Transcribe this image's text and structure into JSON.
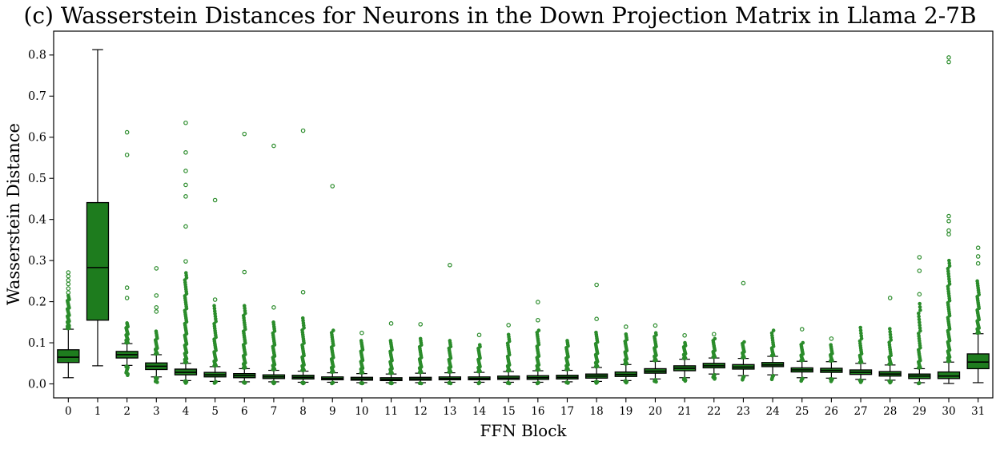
{
  "chart_data": {
    "type": "boxplot",
    "title": "(c) Wasserstein Distances for Neurons in the Down Projection Matrix in Llama 2-7B",
    "xlabel": "FFN Block",
    "ylabel": "Wasserstein Distance",
    "categories": [
      "0",
      "1",
      "2",
      "3",
      "4",
      "5",
      "6",
      "7",
      "8",
      "9",
      "10",
      "11",
      "12",
      "13",
      "14",
      "15",
      "16",
      "17",
      "18",
      "19",
      "20",
      "21",
      "22",
      "23",
      "24",
      "25",
      "26",
      "27",
      "28",
      "29",
      "30",
      "31"
    ],
    "yticks": [
      0.0,
      0.1,
      0.2,
      0.3,
      0.4,
      0.5,
      0.6,
      0.7,
      0.8
    ],
    "ylim": [
      -0.034,
      0.858
    ],
    "grid": false,
    "legend": null,
    "colors": {
      "box_fill": "#1e7c1e",
      "box_edge": "#000000",
      "median": "#000000",
      "whisker": "#000000",
      "outlier": "#2b8c2b",
      "background": "#ffffff"
    },
    "boxes": [
      {
        "label": "0",
        "whislo": 0.015,
        "q1": 0.052,
        "med": 0.065,
        "q3": 0.083,
        "whishi": 0.133,
        "outliers_dense_high": [
          0.135,
          0.215,
          40
        ],
        "outliers_isolated": [
          0.222,
          0.232,
          0.243,
          0.252,
          0.262,
          0.271
        ],
        "outliers_dense_low": []
      },
      {
        "label": "1",
        "whislo": 0.044,
        "q1": 0.155,
        "med": 0.283,
        "q3": 0.441,
        "whishi": 0.813,
        "outliers_dense_high": [],
        "outliers_isolated": [],
        "outliers_dense_low": []
      },
      {
        "label": "2",
        "whislo": 0.045,
        "q1": 0.063,
        "med": 0.071,
        "q3": 0.079,
        "whishi": 0.098,
        "outliers_dense_high": [
          0.1,
          0.148,
          26
        ],
        "outliers_isolated": [
          0.209,
          0.234,
          0.557,
          0.612
        ],
        "outliers_dense_low": [
          0.021,
          0.043,
          12
        ]
      },
      {
        "label": "3",
        "whislo": 0.017,
        "q1": 0.035,
        "med": 0.043,
        "q3": 0.051,
        "whishi": 0.071,
        "outliers_dense_high": [
          0.073,
          0.128,
          20
        ],
        "outliers_isolated": [
          0.176,
          0.186,
          0.215,
          0.281
        ],
        "outliers_dense_low": [
          0.004,
          0.015,
          10
        ]
      },
      {
        "label": "4",
        "whislo": 0.008,
        "q1": 0.022,
        "med": 0.028,
        "q3": 0.036,
        "whishi": 0.05,
        "outliers_dense_high": [
          0.052,
          0.27,
          60
        ],
        "outliers_isolated": [
          0.298,
          0.383,
          0.456,
          0.484,
          0.518,
          0.563,
          0.635
        ],
        "outliers_dense_low": [
          0.002,
          0.007,
          8
        ]
      },
      {
        "label": "5",
        "whislo": 0.006,
        "q1": 0.017,
        "med": 0.022,
        "q3": 0.028,
        "whishi": 0.042,
        "outliers_dense_high": [
          0.044,
          0.19,
          36
        ],
        "outliers_isolated": [
          0.205,
          0.447
        ],
        "outliers_dense_low": [
          0.002,
          0.005,
          6
        ]
      },
      {
        "label": "6",
        "whislo": 0.005,
        "q1": 0.015,
        "med": 0.02,
        "q3": 0.025,
        "whishi": 0.037,
        "outliers_dense_high": [
          0.039,
          0.19,
          40
        ],
        "outliers_isolated": [
          0.272,
          0.608
        ],
        "outliers_dense_low": [
          0.002,
          0.004,
          6
        ]
      },
      {
        "label": "7",
        "whislo": 0.005,
        "q1": 0.013,
        "med": 0.017,
        "q3": 0.022,
        "whishi": 0.033,
        "outliers_dense_high": [
          0.035,
          0.15,
          34
        ],
        "outliers_isolated": [
          0.186,
          0.579
        ],
        "outliers_dense_low": [
          0.001,
          0.004,
          6
        ]
      },
      {
        "label": "8",
        "whislo": 0.004,
        "q1": 0.012,
        "med": 0.016,
        "q3": 0.021,
        "whishi": 0.031,
        "outliers_dense_high": [
          0.033,
          0.16,
          34
        ],
        "outliers_isolated": [
          0.223,
          0.616
        ],
        "outliers_dense_low": [
          0.001,
          0.003,
          6
        ]
      },
      {
        "label": "9",
        "whislo": 0.004,
        "q1": 0.01,
        "med": 0.013,
        "q3": 0.017,
        "whishi": 0.027,
        "outliers_dense_high": [
          0.029,
          0.13,
          30
        ],
        "outliers_isolated": [
          0.481
        ],
        "outliers_dense_low": [
          0.001,
          0.003,
          5
        ]
      },
      {
        "label": "10",
        "whislo": 0.003,
        "q1": 0.009,
        "med": 0.012,
        "q3": 0.016,
        "whishi": 0.025,
        "outliers_dense_high": [
          0.027,
          0.105,
          28
        ],
        "outliers_isolated": [
          0.124
        ],
        "outliers_dense_low": [
          0.001,
          0.002,
          4
        ]
      },
      {
        "label": "11",
        "whislo": 0.003,
        "q1": 0.008,
        "med": 0.011,
        "q3": 0.015,
        "whishi": 0.024,
        "outliers_dense_high": [
          0.026,
          0.105,
          28
        ],
        "outliers_isolated": [
          0.147
        ],
        "outliers_dense_low": [
          0.001,
          0.002,
          4
        ]
      },
      {
        "label": "12",
        "whislo": 0.003,
        "q1": 0.009,
        "med": 0.012,
        "q3": 0.016,
        "whishi": 0.026,
        "outliers_dense_high": [
          0.028,
          0.11,
          26
        ],
        "outliers_isolated": [
          0.145
        ],
        "outliers_dense_low": [
          0.001,
          0.002,
          4
        ]
      },
      {
        "label": "13",
        "whislo": 0.004,
        "q1": 0.01,
        "med": 0.013,
        "q3": 0.017,
        "whishi": 0.027,
        "outliers_dense_high": [
          0.029,
          0.105,
          26
        ],
        "outliers_isolated": [
          0.289
        ],
        "outliers_dense_low": [
          0.001,
          0.003,
          4
        ]
      },
      {
        "label": "14",
        "whislo": 0.004,
        "q1": 0.01,
        "med": 0.013,
        "q3": 0.017,
        "whishi": 0.028,
        "outliers_dense_high": [
          0.03,
          0.095,
          24
        ],
        "outliers_isolated": [
          0.119
        ],
        "outliers_dense_low": [
          0.001,
          0.003,
          4
        ]
      },
      {
        "label": "15",
        "whislo": 0.004,
        "q1": 0.011,
        "med": 0.014,
        "q3": 0.019,
        "whishi": 0.03,
        "outliers_dense_high": [
          0.032,
          0.12,
          26
        ],
        "outliers_isolated": [
          0.143
        ],
        "outliers_dense_low": [
          0.001,
          0.003,
          4
        ]
      },
      {
        "label": "16",
        "whislo": 0.004,
        "q1": 0.011,
        "med": 0.015,
        "q3": 0.02,
        "whishi": 0.032,
        "outliers_dense_high": [
          0.034,
          0.13,
          30
        ],
        "outliers_isolated": [
          0.155,
          0.199
        ],
        "outliers_dense_low": [
          0.001,
          0.003,
          5
        ]
      },
      {
        "label": "17",
        "whislo": 0.005,
        "q1": 0.012,
        "med": 0.016,
        "q3": 0.021,
        "whishi": 0.033,
        "outliers_dense_high": [
          0.035,
          0.105,
          26
        ],
        "outliers_isolated": [],
        "outliers_dense_low": [
          0.002,
          0.004,
          5
        ]
      },
      {
        "label": "18",
        "whislo": 0.006,
        "q1": 0.014,
        "med": 0.019,
        "q3": 0.024,
        "whishi": 0.04,
        "outliers_dense_high": [
          0.042,
          0.125,
          28
        ],
        "outliers_isolated": [
          0.158,
          0.241
        ],
        "outliers_dense_low": [
          0.002,
          0.005,
          6
        ]
      },
      {
        "label": "19",
        "whislo": 0.008,
        "q1": 0.018,
        "med": 0.023,
        "q3": 0.029,
        "whishi": 0.047,
        "outliers_dense_high": [
          0.049,
          0.121,
          26
        ],
        "outliers_isolated": [
          0.139
        ],
        "outliers_dense_low": [
          0.003,
          0.007,
          6
        ]
      },
      {
        "label": "20",
        "whislo": 0.012,
        "q1": 0.026,
        "med": 0.031,
        "q3": 0.037,
        "whishi": 0.055,
        "outliers_dense_high": [
          0.057,
          0.124,
          24
        ],
        "outliers_isolated": [
          0.142
        ],
        "outliers_dense_low": [
          0.005,
          0.01,
          6
        ]
      },
      {
        "label": "21",
        "whislo": 0.015,
        "q1": 0.032,
        "med": 0.038,
        "q3": 0.044,
        "whishi": 0.06,
        "outliers_dense_high": [
          0.062,
          0.1,
          18
        ],
        "outliers_isolated": [
          0.118
        ],
        "outliers_dense_low": [
          0.007,
          0.013,
          6
        ]
      },
      {
        "label": "22",
        "whislo": 0.024,
        "q1": 0.039,
        "med": 0.044,
        "q3": 0.05,
        "whishi": 0.063,
        "outliers_dense_high": [
          0.065,
          0.11,
          16
        ],
        "outliers_isolated": [
          0.121
        ],
        "outliers_dense_low": [
          0.012,
          0.022,
          8
        ]
      },
      {
        "label": "23",
        "whislo": 0.02,
        "q1": 0.036,
        "med": 0.041,
        "q3": 0.047,
        "whishi": 0.062,
        "outliers_dense_high": [
          0.064,
          0.102,
          16
        ],
        "outliers_isolated": [
          0.245
        ],
        "outliers_dense_low": [
          0.01,
          0.018,
          6
        ]
      },
      {
        "label": "24",
        "whislo": 0.022,
        "q1": 0.042,
        "med": 0.046,
        "q3": 0.052,
        "whishi": 0.067,
        "outliers_dense_high": [
          0.069,
          0.13,
          16
        ],
        "outliers_isolated": [],
        "outliers_dense_low": [
          0.011,
          0.02,
          6
        ]
      },
      {
        "label": "25",
        "whislo": 0.015,
        "q1": 0.029,
        "med": 0.034,
        "q3": 0.039,
        "whishi": 0.055,
        "outliers_dense_high": [
          0.057,
          0.1,
          16
        ],
        "outliers_isolated": [
          0.133
        ],
        "outliers_dense_low": [
          0.007,
          0.013,
          6
        ]
      },
      {
        "label": "26",
        "whislo": 0.014,
        "q1": 0.028,
        "med": 0.033,
        "q3": 0.038,
        "whishi": 0.054,
        "outliers_dense_high": [
          0.056,
          0.095,
          14
        ],
        "outliers_isolated": [
          0.11
        ],
        "outliers_dense_low": [
          0.006,
          0.012,
          6
        ]
      },
      {
        "label": "27",
        "whislo": 0.011,
        "q1": 0.023,
        "med": 0.028,
        "q3": 0.034,
        "whishi": 0.05,
        "outliers_dense_high": [
          0.052,
          0.137,
          20
        ],
        "outliers_isolated": [],
        "outliers_dense_low": [
          0.004,
          0.009,
          6
        ]
      },
      {
        "label": "28",
        "whislo": 0.009,
        "q1": 0.019,
        "med": 0.024,
        "q3": 0.03,
        "whishi": 0.046,
        "outliers_dense_high": [
          0.048,
          0.134,
          20
        ],
        "outliers_isolated": [
          0.209
        ],
        "outliers_dense_low": [
          0.003,
          0.007,
          6
        ]
      },
      {
        "label": "29",
        "whislo": 0.003,
        "q1": 0.013,
        "med": 0.019,
        "q3": 0.024,
        "whishi": 0.037,
        "outliers_dense_high": [
          0.039,
          0.195,
          32
        ],
        "outliers_isolated": [
          0.218,
          0.275,
          0.308
        ],
        "outliers_dense_low": [
          0.001,
          0.002,
          4
        ]
      },
      {
        "label": "30",
        "whislo": 0.001,
        "q1": 0.013,
        "med": 0.019,
        "q3": 0.029,
        "whishi": 0.053,
        "outliers_dense_high": [
          0.055,
          0.3,
          60
        ],
        "outliers_isolated": [
          0.364,
          0.373,
          0.396,
          0.408,
          0.783,
          0.794
        ],
        "outliers_dense_low": []
      },
      {
        "label": "31",
        "whislo": 0.003,
        "q1": 0.037,
        "med": 0.053,
        "q3": 0.073,
        "whishi": 0.122,
        "outliers_dense_high": [
          0.124,
          0.25,
          36
        ],
        "outliers_isolated": [
          0.293,
          0.31,
          0.331
        ],
        "outliers_dense_low": []
      }
    ]
  }
}
